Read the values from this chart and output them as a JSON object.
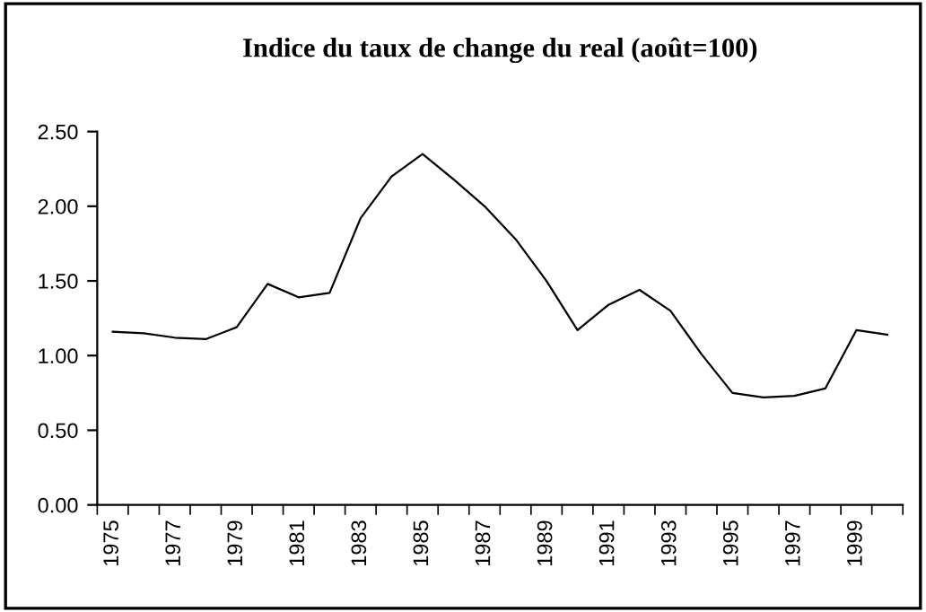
{
  "chart_data": {
    "type": "line",
    "title": "Indice du taux de change du real (août=100)",
    "categories": [
      "1975",
      null,
      "1977",
      null,
      "1979",
      null,
      "1981",
      null,
      "1983",
      null,
      "1985",
      null,
      "1987",
      null,
      "1989",
      null,
      "1991",
      null,
      "1993",
      null,
      "1995",
      null,
      "1997",
      null,
      "1999",
      null
    ],
    "series": [
      {
        "color": "#000000",
        "values": [
          1.16,
          1.15,
          1.12,
          1.11,
          1.19,
          1.48,
          1.39,
          1.42,
          1.92,
          2.2,
          2.35,
          2.18,
          2.0,
          1.78,
          1.5,
          1.17,
          1.34,
          1.44,
          1.3,
          1.01,
          0.75,
          0.72,
          0.73,
          0.78,
          1.17,
          1.14
        ]
      }
    ],
    "ylim": [
      0,
      2.5
    ],
    "yticks": [
      {
        "value": 0,
        "label": "0.00"
      },
      {
        "value": 0.5,
        "label": "0.50"
      },
      {
        "value": 1,
        "label": "1.00"
      },
      {
        "value": 1.5,
        "label": "1.50"
      },
      {
        "value": 2,
        "label": "2.00"
      },
      {
        "value": 2.5,
        "label": "2.50"
      }
    ],
    "grid": false,
    "marker": "none",
    "line_style": "solid"
  }
}
